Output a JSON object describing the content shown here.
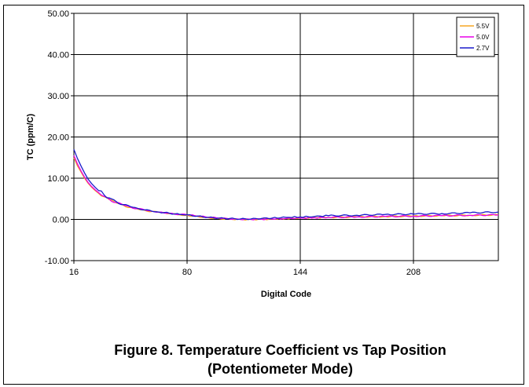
{
  "caption": {
    "line1": "Figure 8. Temperature Coefficient vs Tap Position",
    "line2": "(Potentiometer Mode)"
  },
  "chart_data": {
    "type": "line",
    "title": "",
    "xlabel": "Digital Code",
    "ylabel": "TC (ppm/C)",
    "xlim": [
      16,
      256
    ],
    "ylim": [
      -10,
      50
    ],
    "x_ticks": [
      "16",
      "80",
      "144",
      "208"
    ],
    "y_ticks": [
      "-10.00",
      "0.00",
      "10.00",
      "20.00",
      "30.00",
      "40.00",
      "50.00"
    ],
    "grid": true,
    "legend_position": "top-right",
    "series": [
      {
        "name": "5.5V",
        "color": "#f5a623",
        "x": [
          16,
          18,
          20,
          22,
          24,
          26,
          28,
          30,
          33,
          36,
          40,
          44,
          48,
          52,
          56,
          60,
          64,
          70,
          76,
          80,
          86,
          92,
          98,
          104,
          110,
          116,
          122,
          128,
          136,
          144,
          152,
          160,
          176,
          192,
          208,
          224,
          240,
          256
        ],
        "y": [
          15.0,
          13.0,
          11.5,
          10.0,
          8.8,
          7.8,
          7.0,
          6.3,
          5.5,
          4.8,
          4.0,
          3.4,
          2.9,
          2.5,
          2.2,
          1.9,
          1.7,
          1.4,
          1.1,
          1.0,
          0.7,
          0.4,
          0.2,
          0.1,
          0.0,
          0.0,
          0.05,
          0.1,
          0.2,
          0.3,
          0.4,
          0.5,
          0.6,
          0.7,
          0.8,
          0.9,
          1.0,
          1.1
        ]
      },
      {
        "name": "5.0V",
        "color": "#e800e8",
        "x": [
          16,
          18,
          20,
          22,
          24,
          26,
          28,
          30,
          33,
          36,
          40,
          44,
          48,
          52,
          56,
          60,
          64,
          70,
          76,
          80,
          86,
          92,
          98,
          104,
          110,
          116,
          122,
          128,
          136,
          144,
          152,
          160,
          176,
          192,
          208,
          224,
          240,
          256
        ],
        "y": [
          15.5,
          13.5,
          11.8,
          10.3,
          9.0,
          8.0,
          7.2,
          6.5,
          5.6,
          4.9,
          4.1,
          3.5,
          3.0,
          2.6,
          2.3,
          2.0,
          1.8,
          1.5,
          1.2,
          1.1,
          0.8,
          0.5,
          0.3,
          0.1,
          0.0,
          0.0,
          0.05,
          0.1,
          0.2,
          0.3,
          0.4,
          0.5,
          0.6,
          0.7,
          0.8,
          0.9,
          1.0,
          1.1
        ]
      },
      {
        "name": "2.7V",
        "color": "#1a1acc",
        "x": [
          16,
          18,
          20,
          22,
          24,
          26,
          28,
          30,
          33,
          36,
          40,
          44,
          48,
          52,
          56,
          60,
          64,
          70,
          76,
          80,
          86,
          92,
          98,
          104,
          110,
          116,
          122,
          128,
          136,
          144,
          152,
          160,
          176,
          192,
          208,
          224,
          240,
          256
        ],
        "y": [
          17.0,
          14.8,
          13.0,
          11.3,
          9.8,
          8.7,
          7.8,
          7.0,
          6.0,
          5.2,
          4.3,
          3.6,
          3.1,
          2.7,
          2.3,
          2.0,
          1.8,
          1.5,
          1.2,
          1.1,
          0.8,
          0.5,
          0.3,
          0.2,
          0.1,
          0.1,
          0.2,
          0.3,
          0.5,
          0.6,
          0.7,
          0.9,
          1.0,
          1.2,
          1.3,
          1.4,
          1.6,
          1.8
        ]
      }
    ]
  }
}
